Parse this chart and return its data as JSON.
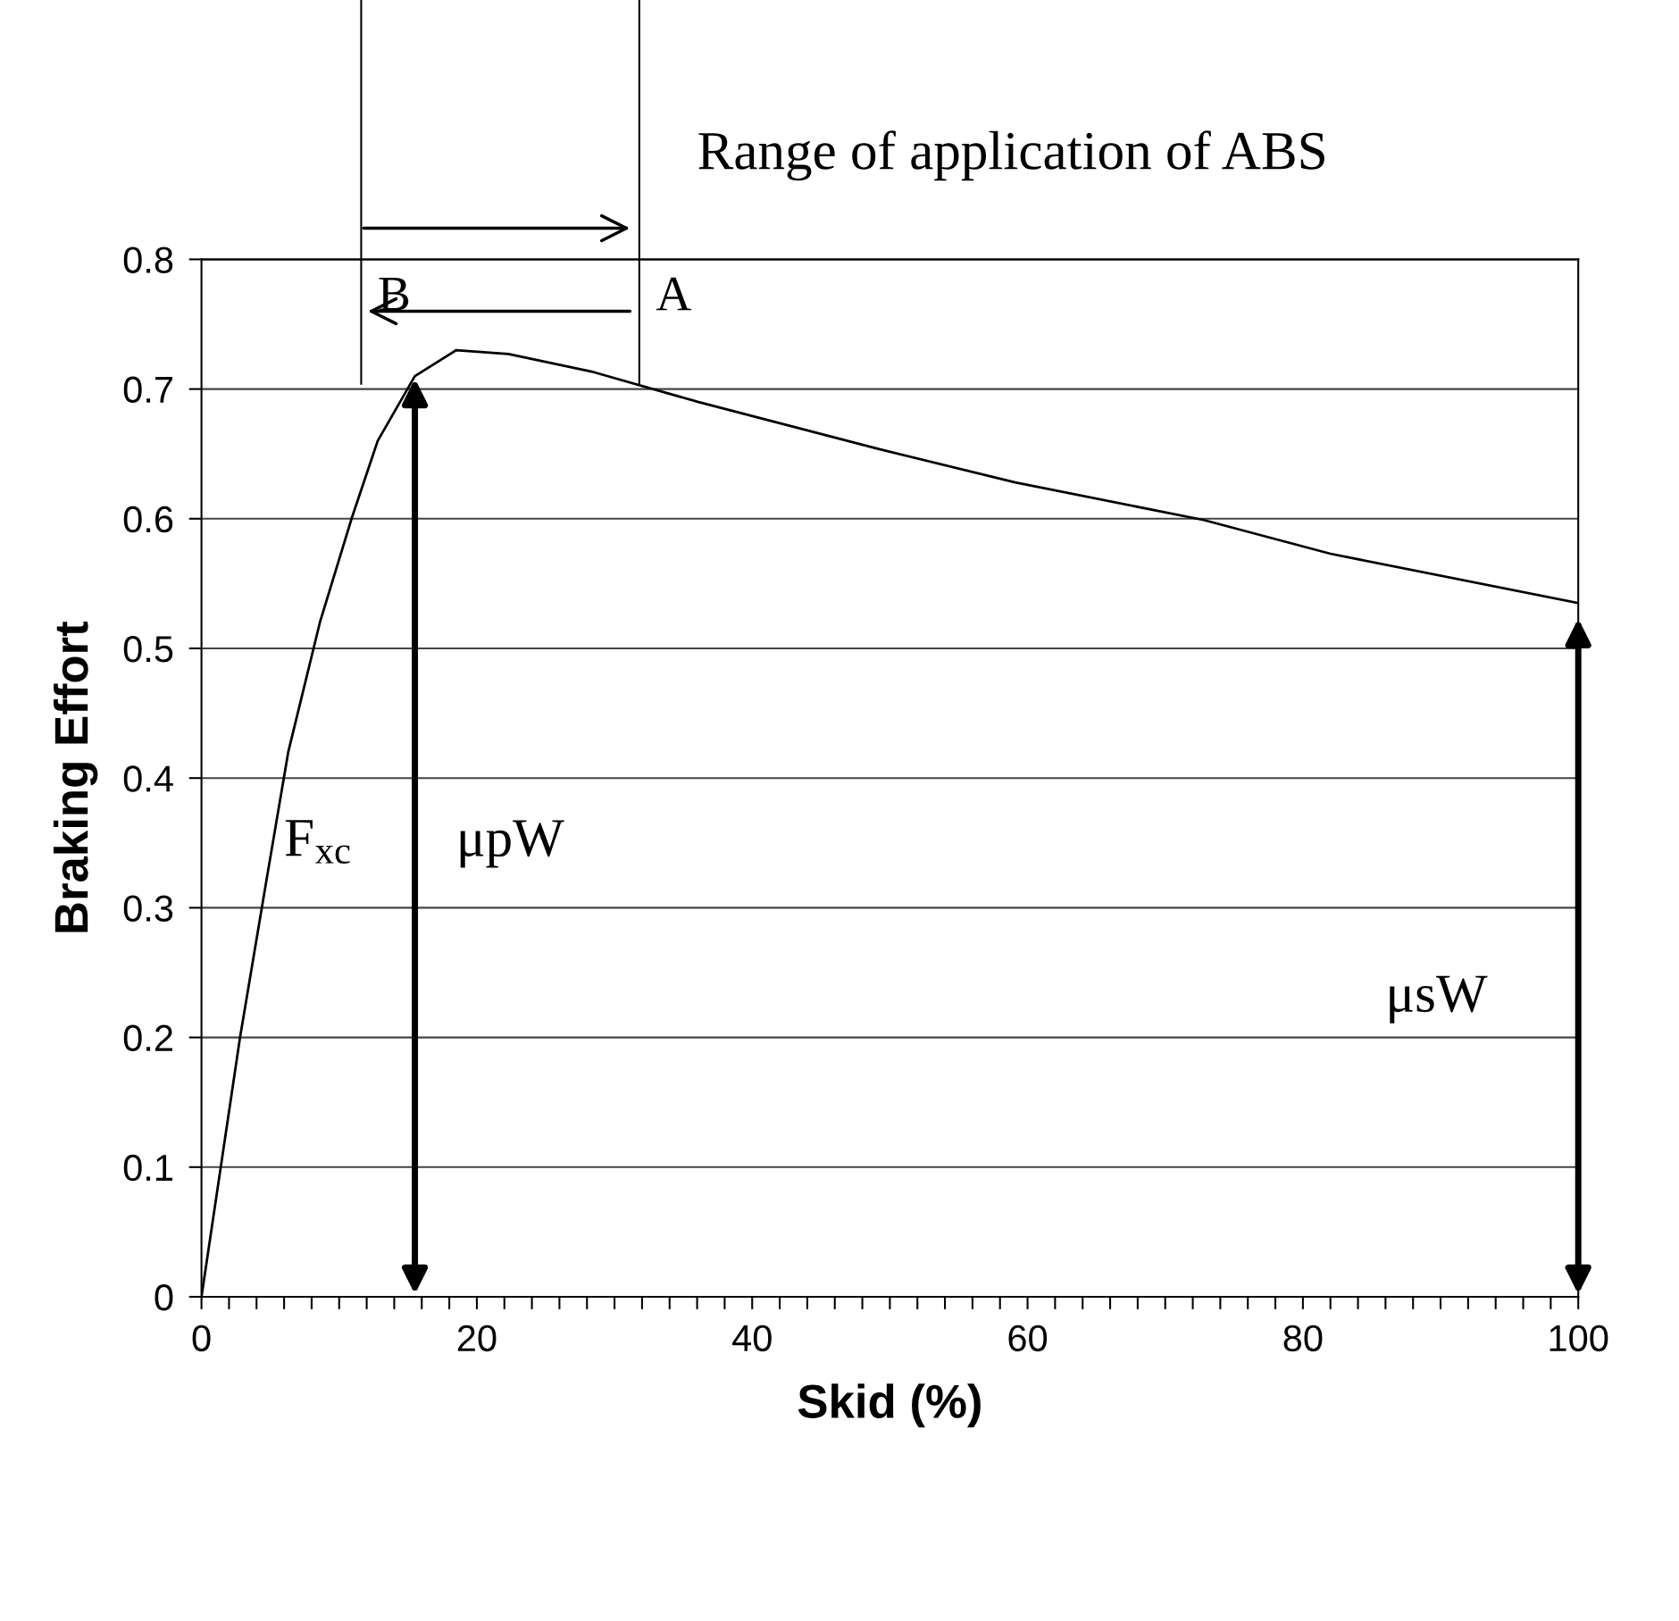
{
  "chart_data": {
    "type": "line",
    "xlabel": "Skid (%)",
    "ylabel": "Braking Effort",
    "x": [
      0,
      2.8,
      4.7,
      6.3,
      8.6,
      10.9,
      12.8,
      15.5,
      18.5,
      22.3,
      28.5,
      36.1,
      49.1,
      59.1,
      72.8,
      82,
      100
    ],
    "series": [
      {
        "color": "#000000",
        "values": [
          0,
          0.2,
          0.32,
          0.42,
          0.52,
          0.6,
          0.66,
          0.71,
          0.73,
          0.727,
          0.713,
          0.69,
          0.654,
          0.628,
          0.599,
          0.573,
          0.535
        ]
      }
    ],
    "xlim": [
      0,
      100
    ],
    "ylim": [
      0,
      0.8
    ],
    "xticks": [
      0,
      {
        "value": 2,
        "label": null
      },
      {
        "value": 4,
        "label": null
      },
      {
        "value": 6,
        "label": null
      },
      {
        "value": 8,
        "label": null
      },
      {
        "value": 10,
        "label": null
      },
      {
        "value": 12,
        "label": null
      },
      {
        "value": 14,
        "label": null
      },
      {
        "value": 16,
        "label": null
      },
      {
        "value": 18,
        "label": null
      },
      20,
      {
        "value": 22,
        "label": null
      },
      {
        "value": 24,
        "label": null
      },
      {
        "value": 26,
        "label": null
      },
      {
        "value": 28,
        "label": null
      },
      {
        "value": 30,
        "label": null
      },
      {
        "value": 32,
        "label": null
      },
      {
        "value": 34,
        "label": null
      },
      {
        "value": 36,
        "label": null
      },
      {
        "value": 38,
        "label": null
      },
      40,
      {
        "value": 42,
        "label": null
      },
      {
        "value": 44,
        "label": null
      },
      {
        "value": 46,
        "label": null
      },
      {
        "value": 48,
        "label": null
      },
      {
        "value": 50,
        "label": null
      },
      {
        "value": 52,
        "label": null
      },
      {
        "value": 54,
        "label": null
      },
      {
        "value": 56,
        "label": null
      },
      {
        "value": 58,
        "label": null
      },
      60,
      {
        "value": 62,
        "label": null
      },
      {
        "value": 64,
        "label": null
      },
      {
        "value": 66,
        "label": null
      },
      {
        "value": 68,
        "label": null
      },
      {
        "value": 70,
        "label": null
      },
      {
        "value": 72,
        "label": null
      },
      {
        "value": 74,
        "label": null
      },
      {
        "value": 76,
        "label": null
      },
      {
        "value": 78,
        "label": null
      },
      80,
      {
        "value": 82,
        "label": null
      },
      {
        "value": 84,
        "label": null
      },
      {
        "value": 86,
        "label": null
      },
      {
        "value": 88,
        "label": null
      },
      {
        "value": 90,
        "label": null
      },
      {
        "value": 92,
        "label": null
      },
      {
        "value": 94,
        "label": null
      },
      {
        "value": 96,
        "label": null
      },
      {
        "value": 98,
        "label": null
      },
      100
    ],
    "yticks": [
      0,
      0.1,
      0.2,
      0.3,
      0.4,
      0.5,
      0.6,
      0.7,
      0.8
    ],
    "grid": "y",
    "marker": "none",
    "line_style": "solid",
    "ref_lines": [
      {
        "axis": "x",
        "value": 11.6,
        "label": "B"
      },
      {
        "axis": "x",
        "value": 31.8,
        "label": "A"
      },
      {
        "axis": "x",
        "value": 15.5
      }
    ],
    "annotations": [
      "Range of application of ABS",
      "F$_{xc}$",
      "μpW",
      "μsW"
    ]
  }
}
